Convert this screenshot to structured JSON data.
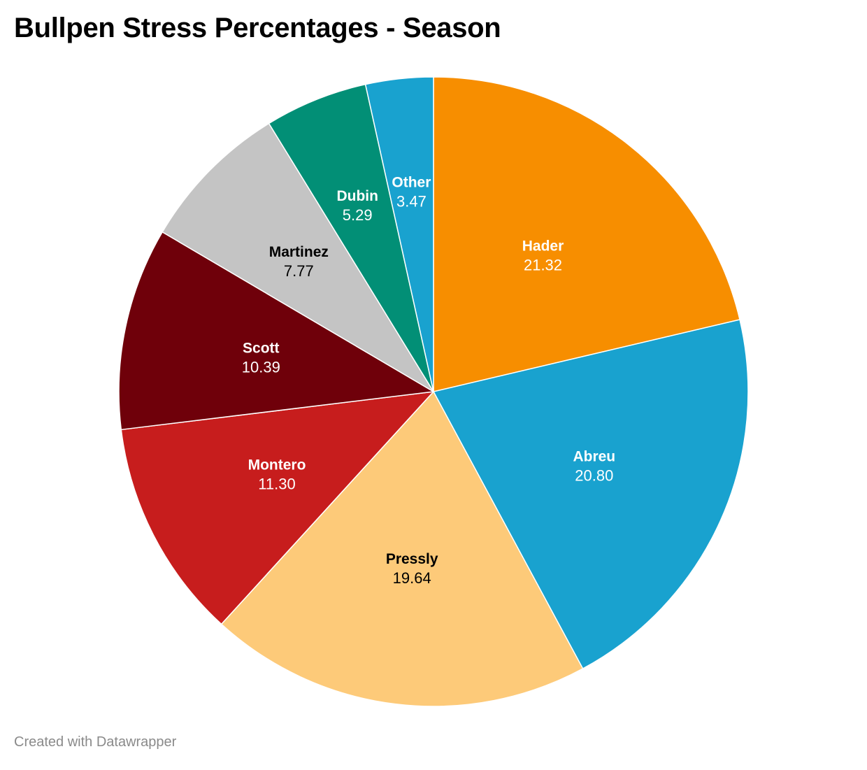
{
  "chart_data": {
    "type": "pie",
    "title": "Bullpen Stress Percentages - Season",
    "slices": [
      {
        "label": "Hader",
        "value": 21.32,
        "value_text": "21.32",
        "color": "#f78e00",
        "label_color": "#ffffff"
      },
      {
        "label": "Abreu",
        "value": 20.8,
        "value_text": "20.80",
        "color": "#19a2cf",
        "label_color": "#ffffff"
      },
      {
        "label": "Pressly",
        "value": 19.64,
        "value_text": "19.64",
        "color": "#fdca79",
        "label_color": "#000000"
      },
      {
        "label": "Montero",
        "value": 11.3,
        "value_text": "11.30",
        "color": "#c71d1d",
        "label_color": "#ffffff"
      },
      {
        "label": "Scott",
        "value": 10.39,
        "value_text": "10.39",
        "color": "#6f000a",
        "label_color": "#ffffff"
      },
      {
        "label": "Martinez",
        "value": 7.77,
        "value_text": "7.77",
        "color": "#c4c4c4",
        "label_color": "#000000"
      },
      {
        "label": "Dubin",
        "value": 5.29,
        "value_text": "5.29",
        "color": "#028f76",
        "label_color": "#ffffff"
      },
      {
        "label": "Other",
        "value": 3.47,
        "value_text": "3.47",
        "color": "#19a2cf",
        "label_color": "#ffffff"
      }
    ]
  },
  "footer": {
    "credit": "Created with Datawrapper"
  }
}
